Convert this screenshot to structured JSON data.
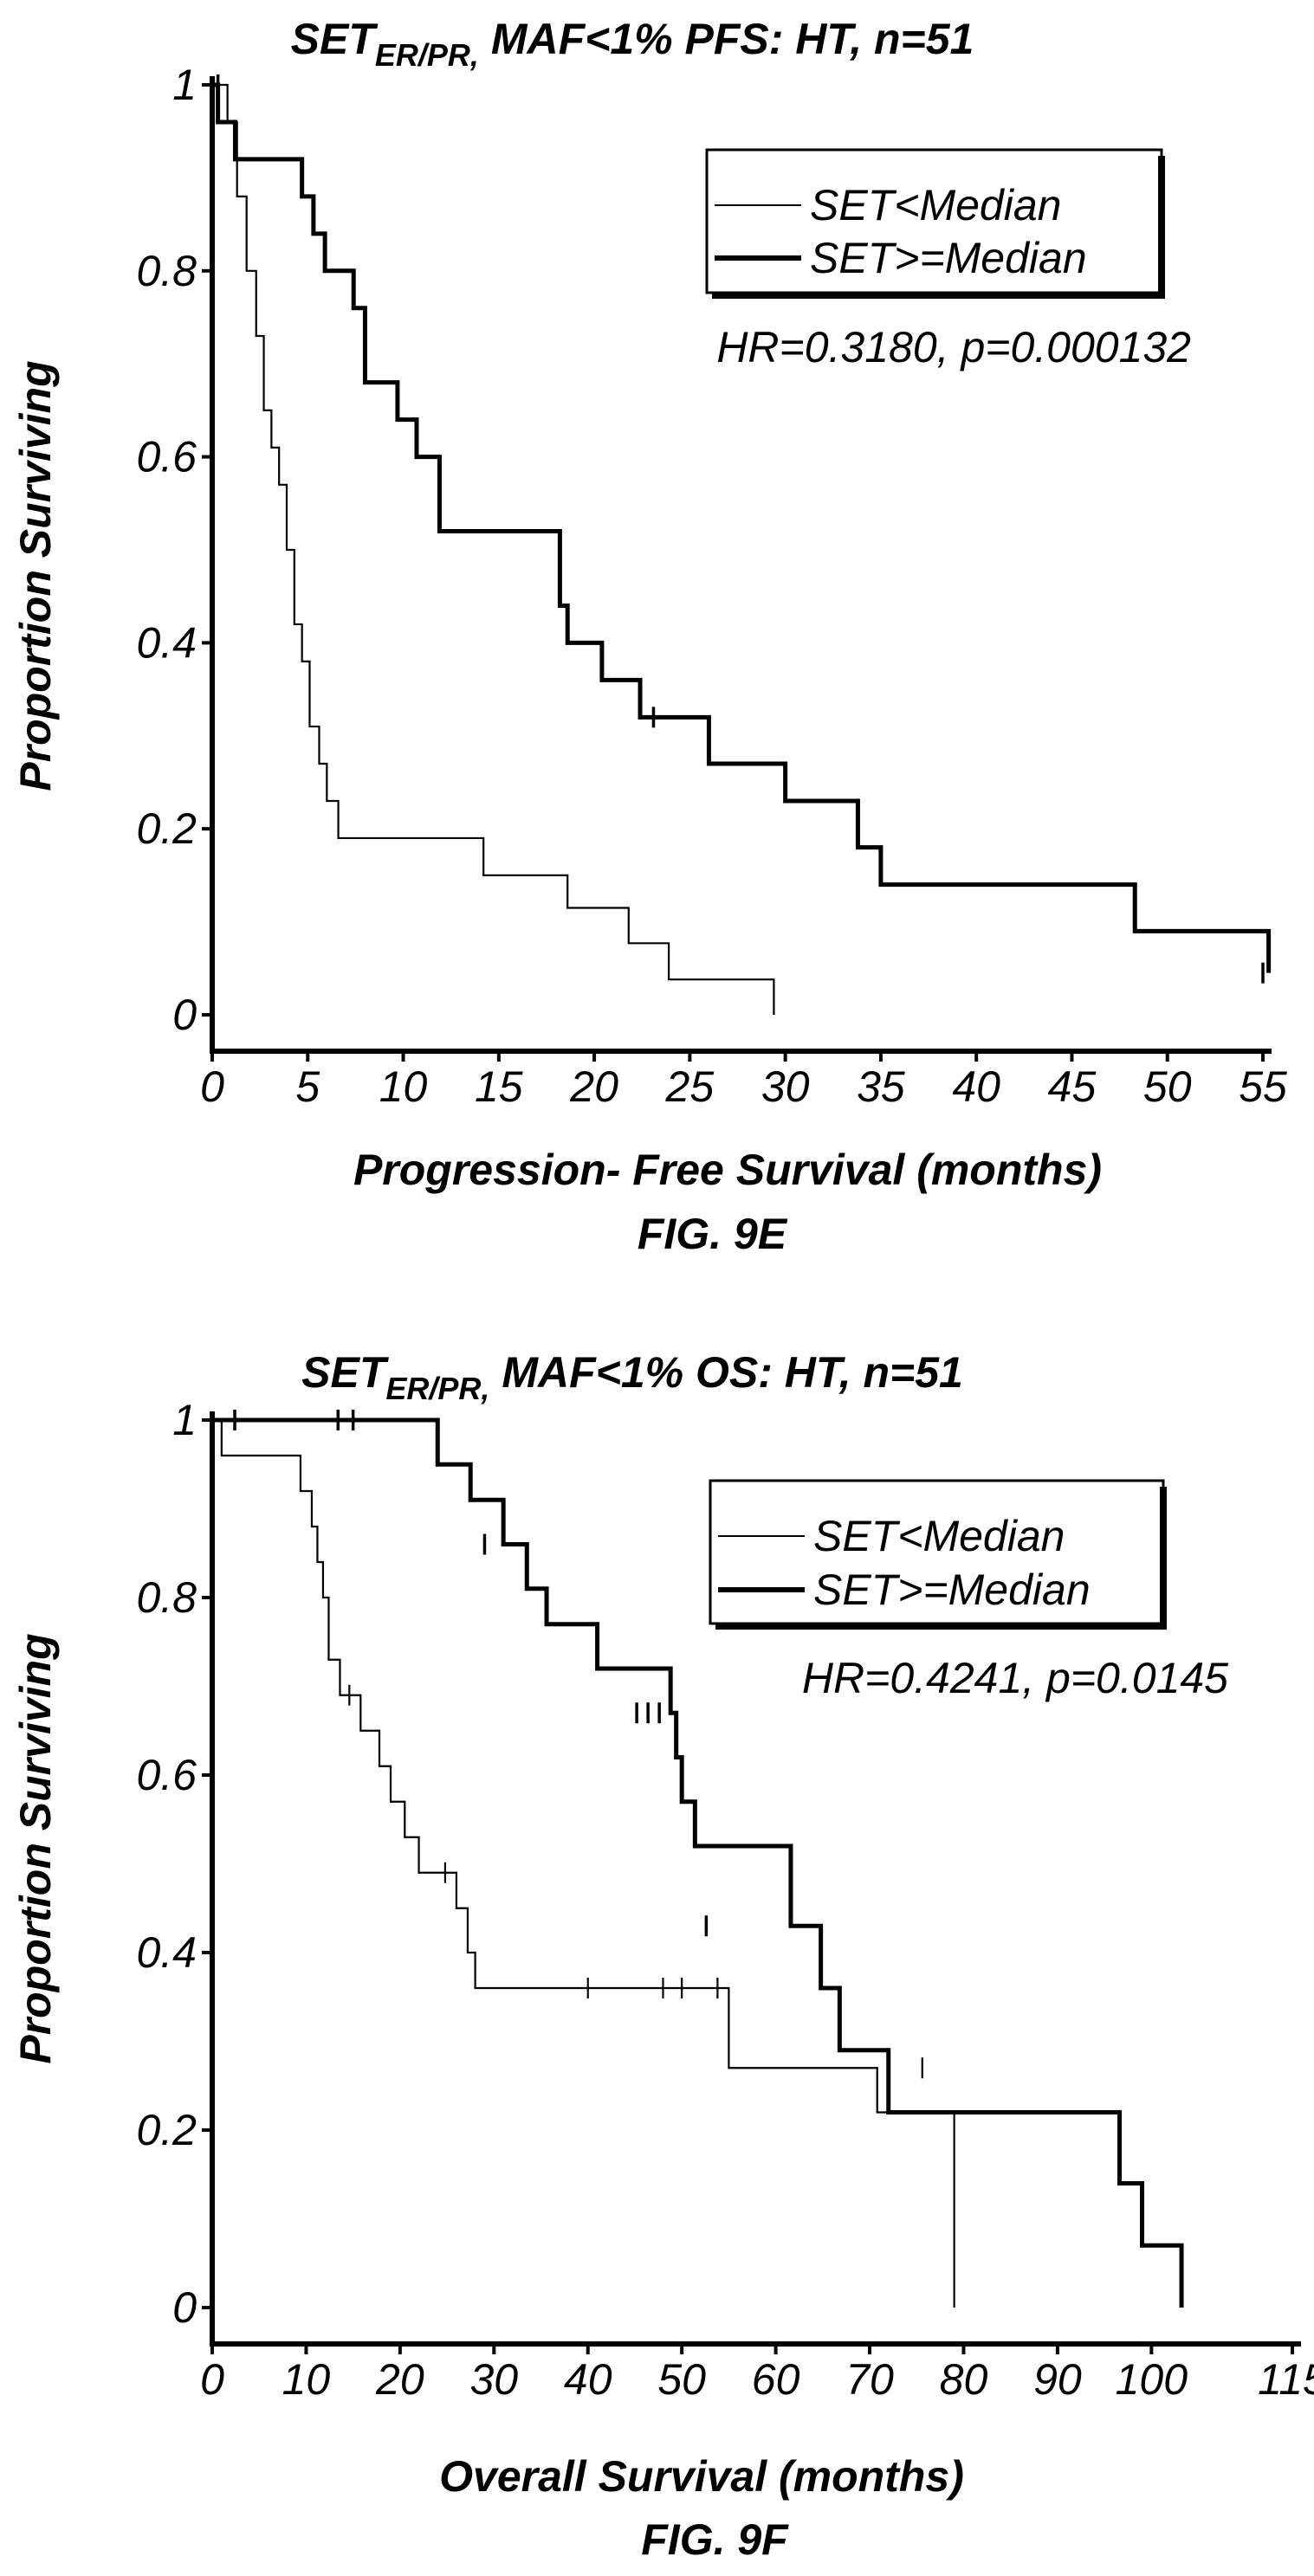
{
  "chart_data": [
    {
      "type": "line",
      "figure_label": "FIG. 9E",
      "title": "SETER/PR, MAF<1% PFS: HT, n=51",
      "title_parts": {
        "main": "SET",
        "subscript": "ER/PR,",
        "rest": " MAF<1% PFS: HT, n=51"
      },
      "xlabel": "Progression- Free Survival (months)",
      "ylabel": "Proportion Surviving",
      "xlim": [
        0,
        55
      ],
      "ylim": [
        0,
        1
      ],
      "x_ticks": [
        0,
        5,
        10,
        15,
        20,
        25,
        30,
        35,
        40,
        45,
        50,
        55
      ],
      "y_ticks": [
        {
          "v": 0,
          "label": "0"
        },
        {
          "v": 0.2,
          "label": "0.2"
        },
        {
          "v": 0.4,
          "label": "0.4"
        },
        {
          "v": 0.6,
          "label": "0.6"
        },
        {
          "v": 0.8,
          "label": "0.8"
        },
        {
          "v": 1,
          "label": "1"
        }
      ],
      "grid": false,
      "legend_position": "top-right",
      "annotation": "HR=0.3180, p=0.000132",
      "series": [
        {
          "name": "SET<Median",
          "style": "thin",
          "step_x": [
            0,
            0.8,
            1.3,
            1.8,
            2.3,
            2.7,
            3.1,
            3.5,
            3.9,
            4.3,
            4.7,
            5.1,
            5.6,
            6.0,
            6.6,
            7.4,
            14.2,
            18.6,
            21.8,
            23.9,
            29.4
          ],
          "step_y": [
            1.0,
            0.96,
            0.88,
            0.8,
            0.73,
            0.65,
            0.61,
            0.57,
            0.5,
            0.42,
            0.38,
            0.31,
            0.27,
            0.23,
            0.19,
            0.19,
            0.15,
            0.115,
            0.077,
            0.038,
            0.0
          ],
          "end_x": 29.4,
          "censored": []
        },
        {
          "name": "SET>=Median",
          "style": "thick",
          "step_x": [
            0,
            0.3,
            1.2,
            2.9,
            4.7,
            5.3,
            5.9,
            7.4,
            8.0,
            9.7,
            10.7,
            11.9,
            17.7,
            18.2,
            18.6,
            20.4,
            22.4,
            26.0,
            30.0,
            33.8,
            35.0,
            48.3
          ],
          "step_y": [
            1.0,
            0.96,
            0.92,
            0.92,
            0.88,
            0.84,
            0.8,
            0.76,
            0.68,
            0.64,
            0.6,
            0.52,
            0.52,
            0.44,
            0.4,
            0.36,
            0.32,
            0.27,
            0.23,
            0.18,
            0.14,
            0.09
          ],
          "end_x": 55.3,
          "end_y": 0.045,
          "censored": [
            {
              "x": 0.3,
              "y": 1.0
            },
            {
              "x": 23.1,
              "y": 0.32
            },
            {
              "x": 55.0,
              "y": 0.045
            }
          ]
        }
      ]
    },
    {
      "type": "line",
      "figure_label": "FIG. 9F",
      "title": "SETER/PR, MAF<1% OS: HT, n=51",
      "title_parts": {
        "main": "SET",
        "subscript": "ER/PR,",
        "rest": " MAF<1% OS: HT, n=51"
      },
      "xlabel": "Overall Survival (months)",
      "ylabel": "Proportion Surviving",
      "xlim": [
        0,
        115
      ],
      "ylim": [
        0,
        1
      ],
      "x_ticks": [
        0,
        10,
        20,
        30,
        40,
        50,
        60,
        70,
        80,
        90,
        100,
        115
      ],
      "y_ticks": [
        {
          "v": 0,
          "label": "0"
        },
        {
          "v": 0.2,
          "label": "0.2"
        },
        {
          "v": 0.4,
          "label": "0.4"
        },
        {
          "v": 0.6,
          "label": "0.6"
        },
        {
          "v": 0.8,
          "label": "0.8"
        },
        {
          "v": 1,
          "label": "1"
        }
      ],
      "grid": false,
      "legend_position": "top-right",
      "annotation": "HR=0.4241, p=0.0145",
      "series": [
        {
          "name": "SET<Median",
          "style": "thin",
          "step_x": [
            0,
            1.0,
            9.4,
            10.6,
            11.2,
            11.8,
            12.4,
            13.6,
            15.8,
            17.8,
            19.0,
            20.5,
            22.0,
            26.0,
            27.2,
            28.0,
            55.0,
            70.8,
            79.0
          ],
          "step_y": [
            1.0,
            0.96,
            0.92,
            0.88,
            0.84,
            0.8,
            0.73,
            0.69,
            0.65,
            0.61,
            0.57,
            0.53,
            0.49,
            0.45,
            0.4,
            0.36,
            0.27,
            0.22,
            0.0
          ],
          "end_x": 79.0,
          "censored": [
            {
              "x": 14.6,
              "y": 0.69
            },
            {
              "x": 24.8,
              "y": 0.49
            },
            {
              "x": 40.0,
              "y": 0.36
            },
            {
              "x": 48.0,
              "y": 0.36
            },
            {
              "x": 50.0,
              "y": 0.36
            },
            {
              "x": 53.8,
              "y": 0.36
            },
            {
              "x": 75.6,
              "y": 0.27
            }
          ]
        },
        {
          "name": "SET>=Median",
          "style": "thick",
          "step_x": [
            0,
            22.0,
            24.0,
            27.5,
            31.0,
            33.5,
            35.6,
            41.0,
            48.8,
            49.4,
            50.0,
            51.4,
            61.6,
            64.8,
            66.8,
            72.0,
            94.6,
            96.6,
            99.0,
            103.2
          ],
          "step_y": [
            1.0,
            1.0,
            0.95,
            0.91,
            0.86,
            0.81,
            0.77,
            0.72,
            0.67,
            0.62,
            0.57,
            0.52,
            0.43,
            0.36,
            0.29,
            0.22,
            0.22,
            0.14,
            0.07,
            0.07
          ],
          "end_x": 103.2,
          "end_y": 0.0,
          "censored": [
            {
              "x": 2.4,
              "y": 1.0
            },
            {
              "x": 13.4,
              "y": 1.0
            },
            {
              "x": 15.0,
              "y": 1.0
            },
            {
              "x": 29.0,
              "y": 0.86
            },
            {
              "x": 45.2,
              "y": 0.67
            },
            {
              "x": 46.4,
              "y": 0.67
            },
            {
              "x": 47.6,
              "y": 0.67
            },
            {
              "x": 52.6,
              "y": 0.43
            }
          ]
        }
      ]
    }
  ]
}
